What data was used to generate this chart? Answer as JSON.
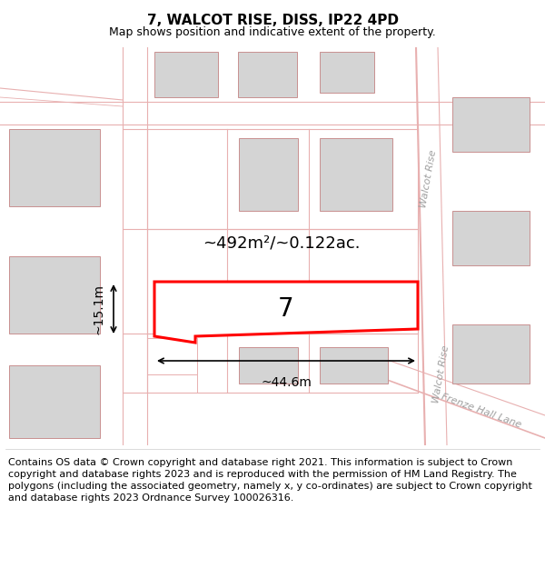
{
  "title": "7, WALCOT RISE, DISS, IP22 4PD",
  "subtitle": "Map shows position and indicative extent of the property.",
  "footer": "Contains OS data © Crown copyright and database right 2021. This information is subject to Crown copyright and database rights 2023 and is reproduced with the permission of HM Land Registry. The polygons (including the associated geometry, namely x, y co-ordinates) are subject to Crown copyright and database rights 2023 Ordnance Survey 100026316.",
  "area_label": "~492m²/~0.122ac.",
  "width_label": "~44.6m",
  "height_label": "~15.1m",
  "plot_number": "7",
  "map_bg": "#f7f5f5",
  "build_fill": "#d4d4d4",
  "road_c": "#e8b0b0",
  "street_label_walcot1": "Walcot Rise",
  "street_label_walcot2": "Walcot Rise",
  "street_label_frenze": "Frenze Hall Lane",
  "title_fontsize": 11,
  "subtitle_fontsize": 9,
  "footer_fontsize": 8
}
